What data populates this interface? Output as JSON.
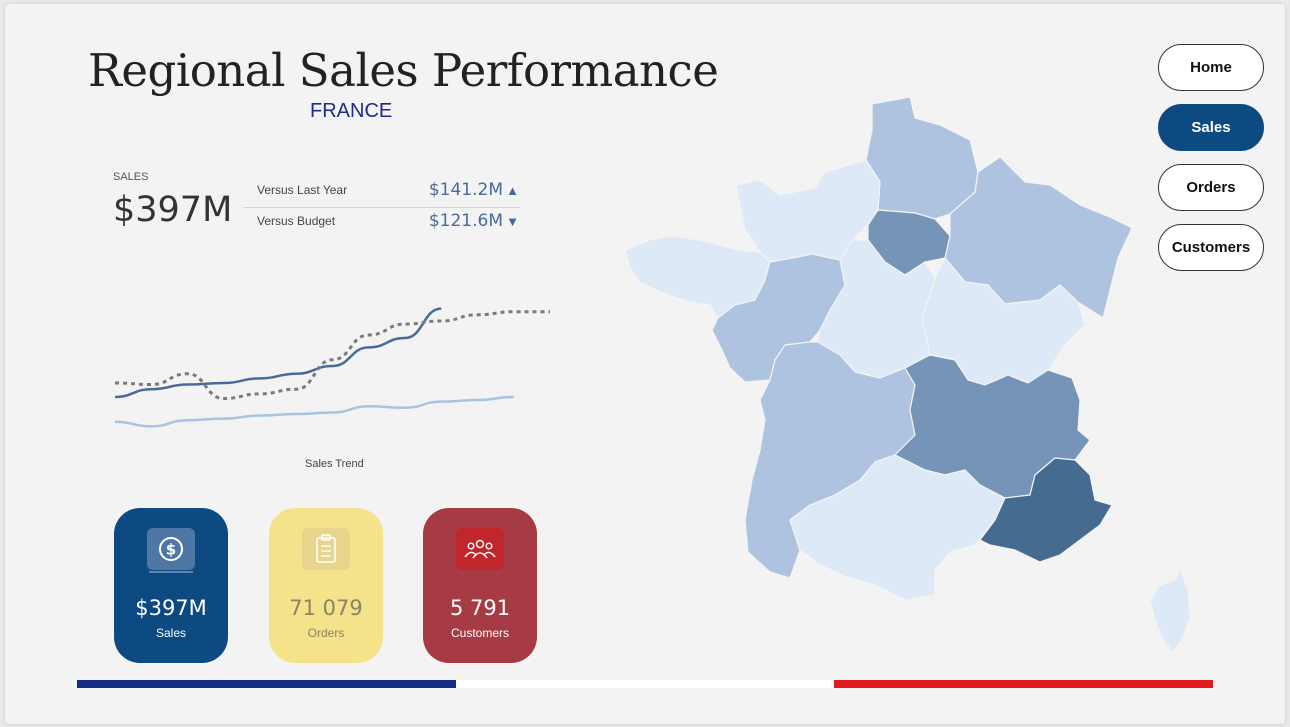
{
  "header": {
    "title": "Regional Sales Performance",
    "subtitle": "FRANCE"
  },
  "kpi": {
    "label": "SALES",
    "value": "$397M",
    "comparisons": [
      {
        "label": "Versus Last Year",
        "value": "$141.2M",
        "direction": "up",
        "arrow": "▲"
      },
      {
        "label": "Versus Budget",
        "value": "$121.6M",
        "direction": "down",
        "arrow": "▼"
      }
    ]
  },
  "trend": {
    "caption": "Sales Trend",
    "series": [
      {
        "style": "solid-dark",
        "color": "#4a6a9a",
        "values": [
          31,
          36,
          39,
          40,
          43,
          46,
          51,
          63,
          69,
          88
        ]
      },
      {
        "style": "dashed",
        "color": "#7a7a7a",
        "values": [
          40,
          39,
          46,
          30,
          33,
          36,
          55,
          71,
          78,
          80,
          84,
          86,
          86
        ]
      },
      {
        "style": "solid-light",
        "color": "#a9c3e3",
        "values": [
          15,
          12,
          16,
          17,
          19,
          20,
          21,
          25,
          24,
          28,
          29,
          31
        ]
      }
    ]
  },
  "cards": [
    {
      "value": "$397M",
      "caption": "Sales",
      "icon": "dollar-coin-icon"
    },
    {
      "value": "71 079",
      "caption": "Orders",
      "icon": "clipboard-checklist-icon"
    },
    {
      "value": "5 791",
      "caption": "Customers",
      "icon": "people-group-icon"
    }
  ],
  "nav": [
    {
      "label": "Home",
      "active": false
    },
    {
      "label": "Sales",
      "active": true
    },
    {
      "label": "Orders",
      "active": false
    },
    {
      "label": "Customers",
      "active": false
    }
  ],
  "colors": {
    "accent": "#0e4a82",
    "flag_blue": "#142c83",
    "flag_white": "#ffffff",
    "flag_red": "#e11a1f",
    "orders_card": "#f4e38a",
    "customers_card": "#a63b43"
  },
  "map": {
    "regions": [
      {
        "name": "Hauts-de-France",
        "level": 3
      },
      {
        "name": "Normandie",
        "level": 1
      },
      {
        "name": "Île-de-France",
        "level": 4
      },
      {
        "name": "Grand Est",
        "level": 3
      },
      {
        "name": "Bretagne",
        "level": 1
      },
      {
        "name": "Pays de la Loire",
        "level": 3
      },
      {
        "name": "Centre-Val de Loire",
        "level": 1
      },
      {
        "name": "Bourgogne-Franche-Comté",
        "level": 1
      },
      {
        "name": "Nouvelle-Aquitaine",
        "level": 3
      },
      {
        "name": "Auvergne-Rhône-Alpes",
        "level": 4
      },
      {
        "name": "Occitanie",
        "level": 1
      },
      {
        "name": "Provence-Alpes-Côte d'Azur",
        "level": 5
      },
      {
        "name": "Corse",
        "level": 1
      }
    ],
    "level_colors": {
      "1": "#dde9f7",
      "3": "#adc3df",
      "4": "#7594b8",
      "5": "#466b91"
    }
  }
}
